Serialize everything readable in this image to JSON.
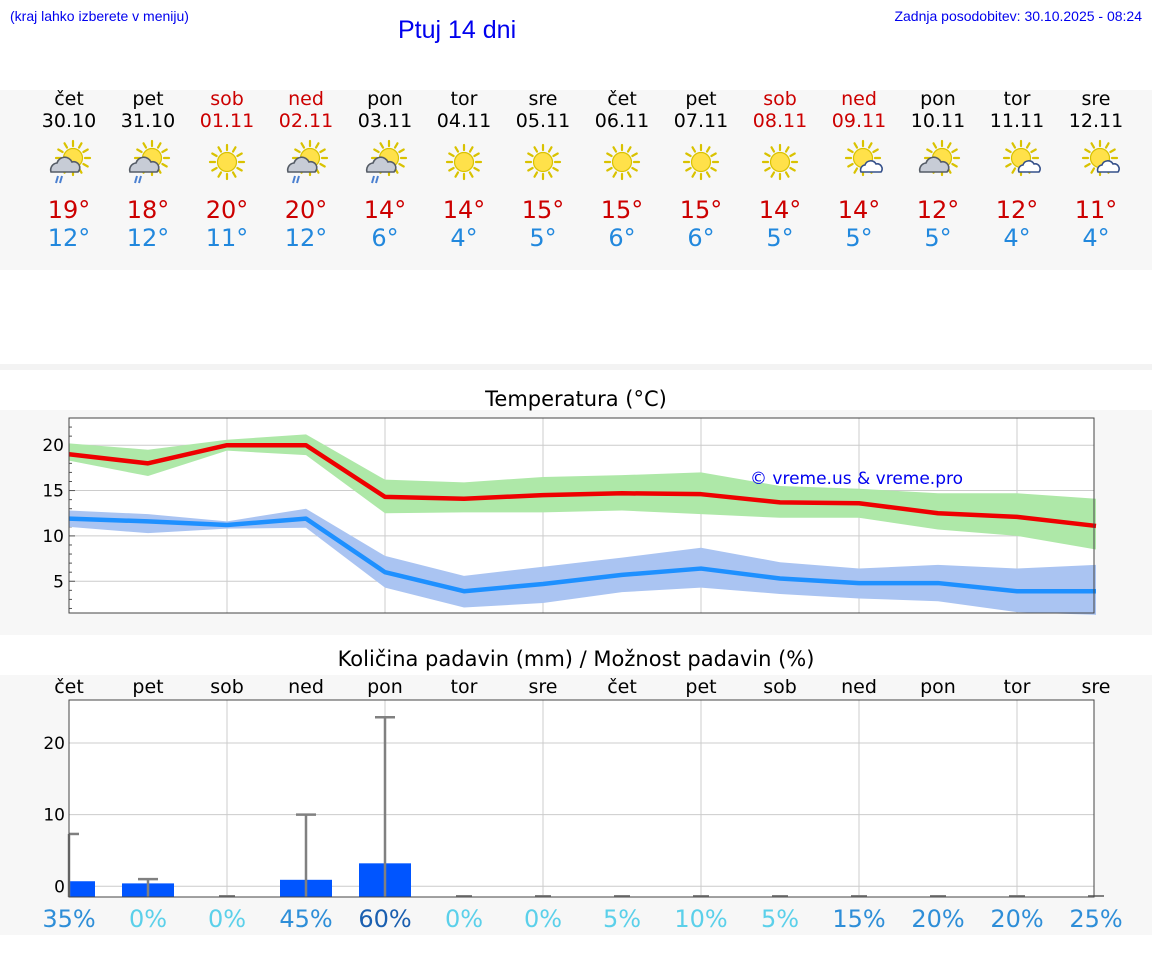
{
  "header": {
    "hint": "(kraj lahko izberete v meniju)",
    "title": "Ptuj 14 dni",
    "updated": "Zadnja posodobitev: 30.10.2025 - 08:24"
  },
  "days": [
    {
      "name": "čet",
      "date": "30.10",
      "max": "19°",
      "min": "12°",
      "icon": "sun-cloud-rain-icon",
      "weekend": false
    },
    {
      "name": "pet",
      "date": "31.10",
      "max": "18°",
      "min": "12°",
      "icon": "sun-cloud-rain-icon",
      "weekend": false
    },
    {
      "name": "sob",
      "date": "01.11",
      "max": "20°",
      "min": "11°",
      "icon": "sun-icon",
      "weekend": true
    },
    {
      "name": "ned",
      "date": "02.11",
      "max": "20°",
      "min": "12°",
      "icon": "sun-cloud-rain-icon",
      "weekend": true
    },
    {
      "name": "pon",
      "date": "03.11",
      "max": "14°",
      "min": "6°",
      "icon": "sun-cloud-rain-icon",
      "weekend": false
    },
    {
      "name": "tor",
      "date": "04.11",
      "max": "14°",
      "min": "4°",
      "icon": "sun-icon",
      "weekend": false
    },
    {
      "name": "sre",
      "date": "05.11",
      "max": "15°",
      "min": "5°",
      "icon": "sun-icon",
      "weekend": false
    },
    {
      "name": "čet",
      "date": "06.11",
      "max": "15°",
      "min": "6°",
      "icon": "sun-icon",
      "weekend": false
    },
    {
      "name": "pet",
      "date": "07.11",
      "max": "15°",
      "min": "6°",
      "icon": "sun-icon",
      "weekend": false
    },
    {
      "name": "sob",
      "date": "08.11",
      "max": "14°",
      "min": "5°",
      "icon": "sun-icon",
      "weekend": true
    },
    {
      "name": "ned",
      "date": "09.11",
      "max": "14°",
      "min": "5°",
      "icon": "sun-small-cloud-icon",
      "weekend": true
    },
    {
      "name": "pon",
      "date": "10.11",
      "max": "12°",
      "min": "5°",
      "icon": "sun-cloud-icon",
      "weekend": false
    },
    {
      "name": "tor",
      "date": "11.11",
      "max": "12°",
      "min": "4°",
      "icon": "sun-small-cloud-icon",
      "weekend": false
    },
    {
      "name": "sre",
      "date": "12.11",
      "max": "11°",
      "min": "4°",
      "icon": "sun-small-cloud-icon",
      "weekend": false
    }
  ],
  "colors": {
    "max_temp": "#ee0000",
    "min_temp": "#1e90ff",
    "max_band": "#aee8a8",
    "min_band": "#aac4f2",
    "bar": "#0055ff",
    "error_bar": "#808080",
    "title_blue": "#0000ee"
  },
  "chart_data": [
    {
      "type": "line",
      "title": "Temperatura (°C)",
      "watermark": "© vreme.us & vreme.pro",
      "x": [
        0,
        1,
        2,
        3,
        4,
        5,
        6,
        7,
        8,
        9,
        10,
        11,
        12,
        13
      ],
      "ylim": [
        1.5,
        23
      ],
      "yticks": [
        5,
        10,
        15,
        20
      ],
      "grid": true,
      "series": [
        {
          "name": "max",
          "values": [
            19,
            18,
            20,
            20,
            14.3,
            14.1,
            14.5,
            14.7,
            14.6,
            13.7,
            13.6,
            12.5,
            12.1,
            11.1
          ],
          "band_low": [
            18.3,
            16.6,
            19.4,
            18.9,
            12.5,
            12.6,
            12.6,
            12.8,
            12.4,
            12.0,
            12.0,
            10.7,
            10.0,
            8.5
          ],
          "band_high": [
            20.2,
            19.5,
            20.6,
            21.2,
            16.2,
            15.9,
            16.5,
            16.7,
            17.0,
            15.5,
            15.2,
            14.7,
            14.7,
            14.1
          ]
        },
        {
          "name": "min",
          "values": [
            11.9,
            11.6,
            11.2,
            11.9,
            6,
            3.9,
            4.7,
            5.7,
            6.4,
            5.3,
            4.8,
            4.8,
            3.9,
            3.9
          ],
          "band_low": [
            11.0,
            10.3,
            10.8,
            10.9,
            4.3,
            2.1,
            2.6,
            3.8,
            4.3,
            3.6,
            3.1,
            2.8,
            1.6,
            1.3
          ],
          "band_high": [
            12.8,
            12.4,
            11.6,
            13.0,
            7.8,
            5.6,
            6.6,
            7.6,
            8.7,
            7.1,
            6.4,
            6.8,
            6.4,
            6.8
          ]
        }
      ]
    },
    {
      "type": "bar",
      "title": "Količina padavin (mm) / Možnost padavin (%)",
      "categories": [
        "čet",
        "pet",
        "sob",
        "ned",
        "pon",
        "tor",
        "sre",
        "čet",
        "pet",
        "sob",
        "ned",
        "pon",
        "tor",
        "sre"
      ],
      "values": [
        0.7,
        0.4,
        0,
        0.9,
        3.2,
        0,
        0,
        0,
        0,
        0,
        0,
        0,
        0,
        0
      ],
      "error_high": [
        7.3,
        1.0,
        0,
        10.0,
        23.6,
        0,
        0,
        0,
        0,
        0,
        0,
        0,
        0,
        0
      ],
      "probability": [
        "35%",
        "0%",
        "0%",
        "45%",
        "60%",
        "0%",
        "0%",
        "5%",
        "10%",
        "5%",
        "15%",
        "20%",
        "20%",
        "25%"
      ],
      "probability_colors": [
        "#2e8ed8",
        "#5bd0ea",
        "#5bd0ea",
        "#2e8ed8",
        "#1a5fb0",
        "#5bd0ea",
        "#5bd0ea",
        "#5bd0ea",
        "#5bd0ea",
        "#5bd0ea",
        "#2e8ed8",
        "#2e8ed8",
        "#2e8ed8",
        "#2e8ed8"
      ],
      "ylim": [
        -1.5,
        26
      ],
      "yticks": [
        0,
        10,
        20
      ],
      "grid": true
    }
  ]
}
